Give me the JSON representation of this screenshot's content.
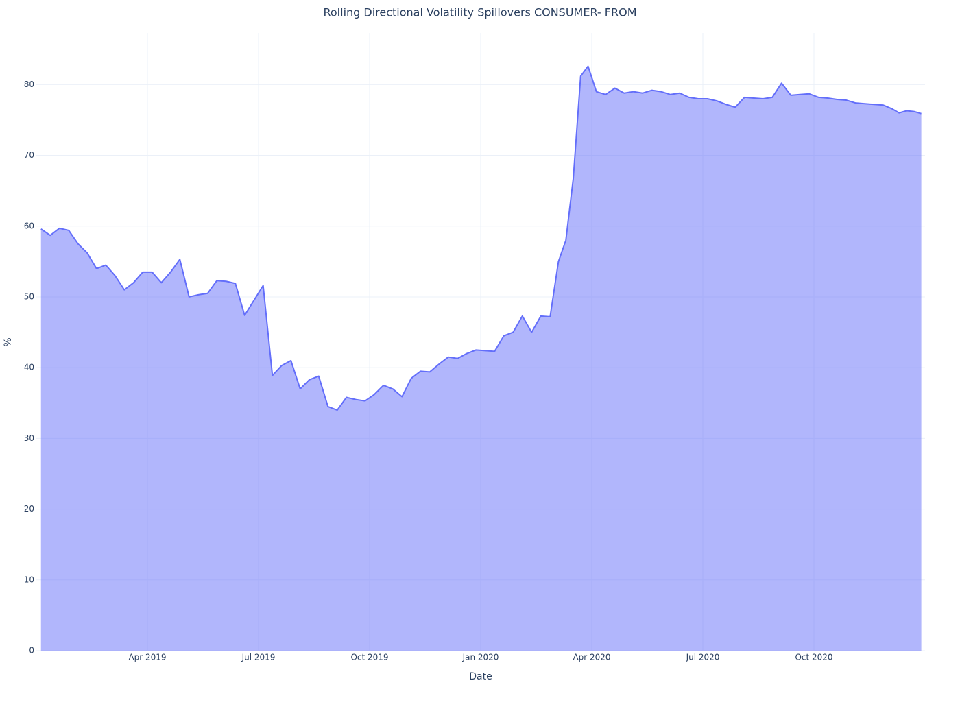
{
  "chart_data": {
    "type": "area",
    "title": "Rolling Directional Volatility Spillovers CONSUMER- FROM",
    "x_label": "Date",
    "y_label": "%",
    "x": [
      "2019-01",
      "2019-01",
      "2019-01",
      "2019-01",
      "2019-02",
      "2019-02",
      "2019-02",
      "2019-02",
      "2019-03",
      "2019-03",
      "2019-03",
      "2019-03",
      "2019-04",
      "2019-04",
      "2019-04",
      "2019-04",
      "2019-05",
      "2019-05",
      "2019-05",
      "2019-05",
      "2019-06",
      "2019-06",
      "2019-06",
      "2019-06",
      "2019-07",
      "2019-07",
      "2019-07",
      "2019-07",
      "2019-08",
      "2019-08",
      "2019-08",
      "2019-08",
      "2019-09",
      "2019-09",
      "2019-09",
      "2019-09",
      "2019-10",
      "2019-10",
      "2019-10",
      "2019-10",
      "2019-11",
      "2019-11",
      "2019-11",
      "2019-11",
      "2019-12",
      "2019-12",
      "2019-12",
      "2019-12",
      "2020-01",
      "2020-01",
      "2020-01",
      "2020-01",
      "2020-02",
      "2020-02",
      "2020-02",
      "2020-02",
      "2020-03",
      "2020-03",
      "2020-03",
      "2020-03",
      "2020-03",
      "2020-04",
      "2020-04",
      "2020-04",
      "2020-04",
      "2020-05",
      "2020-05",
      "2020-05",
      "2020-05",
      "2020-06",
      "2020-06",
      "2020-06",
      "2020-06",
      "2020-07",
      "2020-07",
      "2020-07",
      "2020-07",
      "2020-08",
      "2020-08",
      "2020-08",
      "2020-08",
      "2020-09",
      "2020-09",
      "2020-09",
      "2020-09",
      "2020-10",
      "2020-10",
      "2020-10",
      "2020-10",
      "2020-11",
      "2020-11",
      "2020-11",
      "2020-11",
      "2020-12",
      "2020-12",
      "2020-12",
      "2020-12",
      "2020-12"
    ],
    "values": [
      59.6,
      58.7,
      59.7,
      59.4,
      57.5,
      56.2,
      54.0,
      54.5,
      53.0,
      51.0,
      52.0,
      53.5,
      53.5,
      52.0,
      53.5,
      55.3,
      50.0,
      50.3,
      50.5,
      52.3,
      52.2,
      51.9,
      47.4,
      49.5,
      51.6,
      38.9,
      40.3,
      41.0,
      37.0,
      38.3,
      38.8,
      34.5,
      34.0,
      35.8,
      35.5,
      35.3,
      36.2,
      37.5,
      37.0,
      35.9,
      38.5,
      39.5,
      39.4,
      40.5,
      41.5,
      41.3,
      42.0,
      42.5,
      42.4,
      42.3,
      44.5,
      45.0,
      47.3,
      45.0,
      47.3,
      47.2,
      55.0,
      58.0,
      66.7,
      81.2,
      82.6,
      79.0,
      78.6,
      79.5,
      78.8,
      79.0,
      78.8,
      79.2,
      79.0,
      78.6,
      78.8,
      78.2,
      78.0,
      78.0,
      77.7,
      77.2,
      76.8,
      78.2,
      78.1,
      78.0,
      78.2,
      80.2,
      78.5,
      78.6,
      78.7,
      78.2,
      78.1,
      77.9,
      77.8,
      77.4,
      77.3,
      77.2,
      77.1,
      76.6,
      76.0,
      76.3,
      76.2,
      75.9
    ],
    "color": "#636efa",
    "xlim": [
      "2019-01",
      "2021-01"
    ],
    "xticks": [
      {
        "value": "2019-04",
        "label": "Apr 2019"
      },
      {
        "value": "2019-07",
        "label": "Jul 2019"
      },
      {
        "value": "2019-10",
        "label": "Oct 2019"
      },
      {
        "value": "2020-01",
        "label": "Jan 2020"
      },
      {
        "value": "2020-04",
        "label": "Apr 2020"
      },
      {
        "value": "2020-07",
        "label": "Jul 2020"
      },
      {
        "value": "2020-10",
        "label": "Oct 2020"
      }
    ],
    "ylim": [
      0,
      87.3
    ],
    "yticks": [
      0,
      10,
      20,
      30,
      40,
      50,
      60,
      70,
      80
    ],
    "grid": true
  }
}
